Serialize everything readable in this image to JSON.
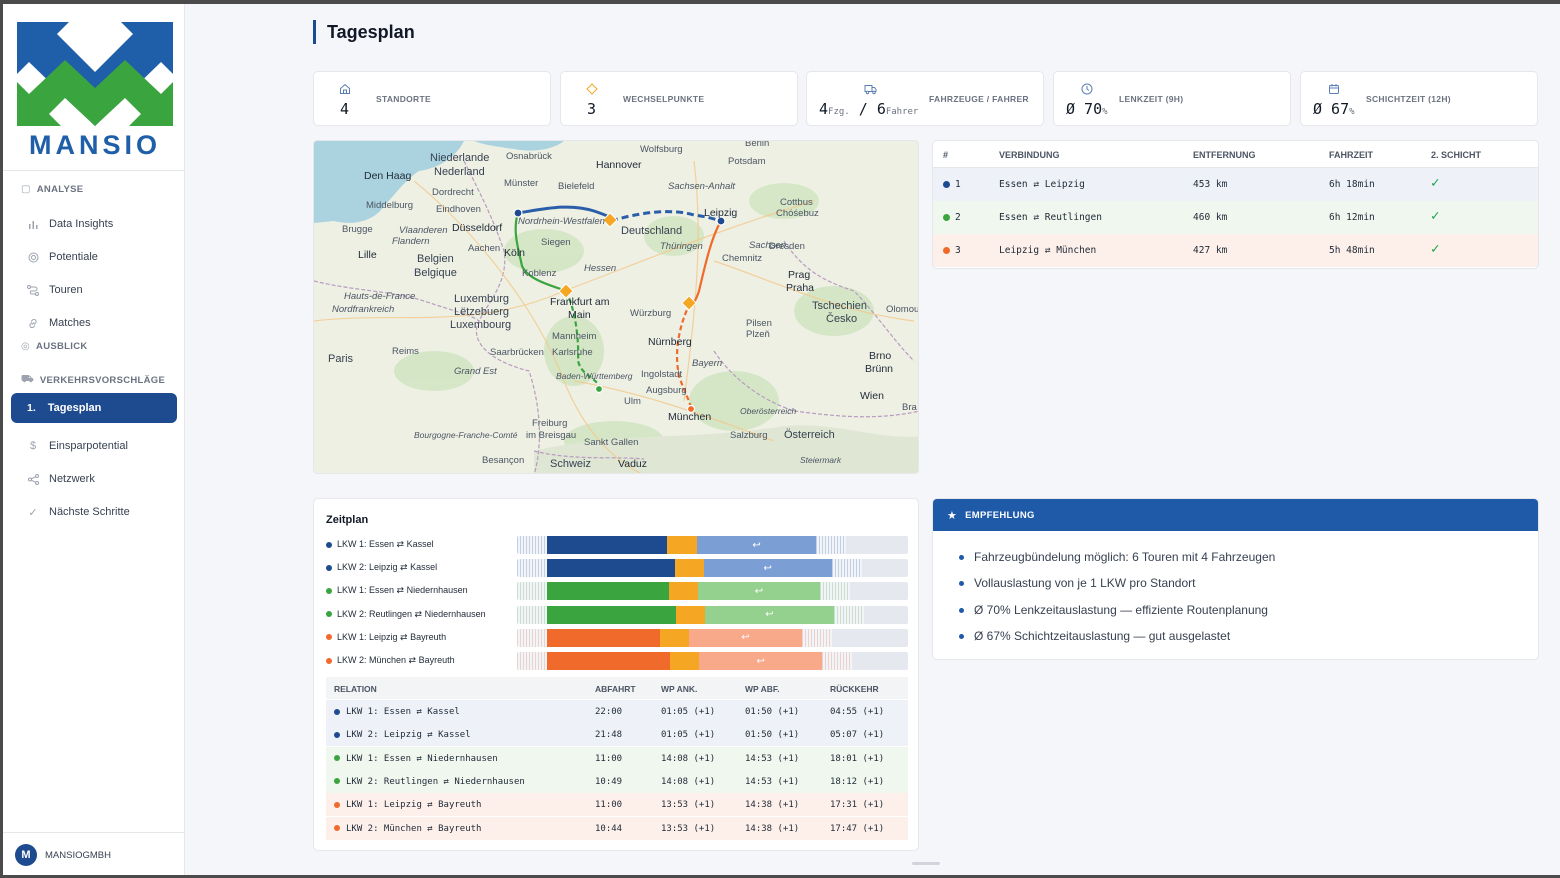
{
  "brand": {
    "name": "MANSIO"
  },
  "sidebar": {
    "sections": [
      {
        "label": "ANALYSE"
      },
      {
        "label": "AUSBLICK"
      },
      {
        "label": "VERKEHRSVORSCHLÄGE"
      }
    ],
    "items": [
      {
        "label": "Data Insights",
        "icon": "bar-chart-icon"
      },
      {
        "label": "Potentiale",
        "icon": "target-icon"
      },
      {
        "label": "Touren",
        "icon": "route-icon"
      },
      {
        "label": "Matches",
        "icon": "link-icon"
      },
      {
        "label": "Tagesplan",
        "number": "1.",
        "active": true
      },
      {
        "label": "Einsparpotential",
        "icon": "dollar-icon"
      },
      {
        "label": "Netzwerk",
        "icon": "share-icon"
      },
      {
        "label": "Nächste Schritte",
        "icon": "check-icon"
      }
    ],
    "user": {
      "initial": "M",
      "name": "MANSIOGMBH"
    }
  },
  "page": {
    "title": "Tagesplan"
  },
  "kpis": [
    {
      "label": "STANDORTE",
      "value": "4",
      "icon": "home-icon"
    },
    {
      "label": "WECHSELPUNKTE",
      "value": "3",
      "icon": "diamond-icon"
    },
    {
      "label": "FAHRZEUGE / FAHRER",
      "value_a": "4",
      "unit_a": "Fzg.",
      "sep": "/",
      "value_b": "6",
      "unit_b": "Fahrer",
      "icon": "truck-icon"
    },
    {
      "label": "LENKZEIT (9H)",
      "value": "Ø 70",
      "unit": "%",
      "icon": "clock-icon"
    },
    {
      "label": "SCHICHTZEIT (12H)",
      "value": "Ø 67",
      "unit": "%",
      "icon": "calendar-icon"
    }
  ],
  "map": {
    "labels": {
      "niederlande": "Niederlande",
      "nederland": "Nederland",
      "denhaag": "Den Haag",
      "osnabrueck": "Osnabrück",
      "wolfsburg": "Wolfsburg",
      "hannover": "Hannover",
      "potsdam": "Potsdam",
      "berlin": "Berlin",
      "middelburg": "Middelburg",
      "dordrecht": "Dordrecht",
      "muenster": "Münster",
      "bielefeld": "Bielefeld",
      "sachsen_anhalt": "Sachsen-Anhalt",
      "cottbus": "Cottbus",
      "chotebuz": "Chóśebuz",
      "eindhoven": "Eindhoven",
      "duesseldorf": "Düsseldorf",
      "deutschland": "Deutschland",
      "leipzig": "Leipzig",
      "brugge": "Brugge",
      "vlaanderen": "Vlaanderen",
      "flandern": "Flandern",
      "nordrhein": "Nordrhein-Westfalen",
      "siegen": "Siegen",
      "aachen": "Aachen",
      "thueringen": "Thüringen",
      "sachsen": "Sachsen",
      "dresden": "Dresden",
      "chemnitz": "Chemnitz",
      "lille": "Lille",
      "belgien": "Belgien",
      "belgique": "Belgique",
      "koeln": "Köln",
      "koblenz": "Koblenz",
      "hessen": "Hessen",
      "prag": "Prag",
      "praha": "Praha",
      "frankfurt": "Frankfurt am",
      "main": "Main",
      "luxemburg": "Luxemburg",
      "letzebuerg": "Lëtzebuerg",
      "luxembourg": "Luxembourg",
      "wuerzburg": "Würzburg",
      "tschechien": "Tschechien",
      "cesko": "Česko",
      "hauts": "Hauts-de-France",
      "nordfrankreich": "Nordfrankreich",
      "pilsen": "Pilsen",
      "plzen": "Plzeň",
      "mannheim": "Mannheim",
      "karlsruhe": "Karlsruhe",
      "nuernberg": "Nürnberg",
      "reims": "Reims",
      "saarbruecken": "Saarbrücken",
      "bayern": "Bayern",
      "paris": "Paris",
      "grandest": "Grand Est",
      "badenw": "Baden-Württemberg",
      "ingolstadt": "Ingolstadt",
      "brno": "Brno",
      "bruenn": "Brünn",
      "augsburg": "Augsburg",
      "ulm": "Ulm",
      "muenchen": "München",
      "wien": "Wien",
      "freiburg": "Freiburg",
      "imbreisgau": "im Breisgau",
      "oberoesterreich": "Oberösterreich",
      "sanktgallen": "Sankt Gallen",
      "salzburg": "Salzburg",
      "oesterreich": "Österreich",
      "bourgogne": "Bourgogne-Franche-Comté",
      "besancon": "Besançon",
      "schweiz": "Schweiz",
      "vaduz": "Vaduz",
      "steiermark": "Steiermark",
      "olomouc": "Olomouc",
      "bra": "Bra"
    }
  },
  "connections": {
    "headers": [
      "#",
      "VERBINDUNG",
      "ENTFERNUNG",
      "FAHRZEIT",
      "2. SCHICHT"
    ],
    "rows": [
      {
        "n": "1",
        "route": "Essen ⇄ Leipzig",
        "distance": "453 km",
        "time": "6h 18min",
        "color": "#1e4b8f"
      },
      {
        "n": "2",
        "route": "Essen ⇄ Reutlingen",
        "distance": "460 km",
        "time": "6h 12min",
        "color": "#3aa53f"
      },
      {
        "n": "3",
        "route": "Leipzig ⇄ München",
        "distance": "427 km",
        "time": "5h 48min",
        "color": "#f06a2c"
      }
    ]
  },
  "zeitplan": {
    "title": "Zeitplan",
    "gantt": [
      {
        "label": "LKW 1: Essen ⇄ Kassel",
        "color": "#1e4b8f",
        "light": "#7b9fd4",
        "drive": 0.306,
        "wait": 0.077,
        "ret": 0.306
      },
      {
        "label": "LKW 2: Leipzig ⇄ Kassel",
        "color": "#1e4b8f",
        "light": "#7b9fd4",
        "drive": 0.327,
        "wait": 0.074,
        "ret": 0.327
      },
      {
        "label": "LKW 1: Essen ⇄ Niedernhausen",
        "color": "#3aa53f",
        "light": "#94d08e",
        "drive": 0.312,
        "wait": 0.074,
        "ret": 0.312
      },
      {
        "label": "LKW 2: Reutlingen ⇄ Niedernhausen",
        "color": "#3aa53f",
        "light": "#94d08e",
        "drive": 0.33,
        "wait": 0.074,
        "ret": 0.33
      },
      {
        "label": "LKW 1: Leipzig ⇄ Bayreuth",
        "color": "#f06a2c",
        "light": "#f7a98a",
        "drive": 0.289,
        "wait": 0.074,
        "ret": 0.289
      },
      {
        "label": "LKW 2: München ⇄ Bayreuth",
        "color": "#f06a2c",
        "light": "#f7a98a",
        "drive": 0.315,
        "wait": 0.074,
        "ret": 0.315
      }
    ],
    "return_symbol": "↩",
    "table_headers": [
      "RELATION",
      "ABFAHRT",
      "WP ANK.",
      "WP ABF.",
      "RÜCKKEHR"
    ],
    "rows": [
      {
        "relation": "LKW 1: Essen ⇄ Kassel",
        "dep": "22:00",
        "wp_arr": "01:05 (+1)",
        "wp_dep": "01:50 (+1)",
        "ret": "04:55 (+1)",
        "color": "#1e4b8f",
        "bg": "#eef2f8"
      },
      {
        "relation": "LKW 2: Leipzig ⇄ Kassel",
        "dep": "21:48",
        "wp_arr": "01:05 (+1)",
        "wp_dep": "01:50 (+1)",
        "ret": "05:07 (+1)",
        "color": "#1e4b8f",
        "bg": "#eef2f8"
      },
      {
        "relation": "LKW 1: Essen ⇄ Niedernhausen",
        "dep": "11:00",
        "wp_arr": "14:08 (+1)",
        "wp_dep": "14:53 (+1)",
        "ret": "18:01 (+1)",
        "color": "#3aa53f",
        "bg": "#eff7ee"
      },
      {
        "relation": "LKW 2: Reutlingen ⇄ Niedernhausen",
        "dep": "10:49",
        "wp_arr": "14:08 (+1)",
        "wp_dep": "14:53 (+1)",
        "ret": "18:12 (+1)",
        "color": "#3aa53f",
        "bg": "#eff7ee"
      },
      {
        "relation": "LKW 1: Leipzig ⇄ Bayreuth",
        "dep": "11:00",
        "wp_arr": "13:53 (+1)",
        "wp_dep": "14:38 (+1)",
        "ret": "17:31 (+1)",
        "color": "#f06a2c",
        "bg": "#fdf0ea"
      },
      {
        "relation": "LKW 2: München ⇄ Bayreuth",
        "dep": "10:44",
        "wp_arr": "13:53 (+1)",
        "wp_dep": "14:38 (+1)",
        "ret": "17:47 (+1)",
        "color": "#f06a2c",
        "bg": "#fdf0ea"
      }
    ]
  },
  "empfehlung": {
    "title": "EMPFEHLUNG",
    "items": [
      "Fahrzeugbündelung möglich: 6 Touren mit 4 Fahrzeugen",
      "Vollauslastung von je 1 LKW pro Standort",
      "Ø 70% Lenkzeitauslastung — effiziente Routenplanung",
      "Ø 67% Schichtzeitauslastung — gut ausgelastet"
    ]
  },
  "colors": {
    "primary": "#1e4b8f",
    "accent_blue": "#1e5aa8",
    "green": "#3aa53f",
    "orange": "#f06a2c",
    "wait": "#f5a623"
  }
}
